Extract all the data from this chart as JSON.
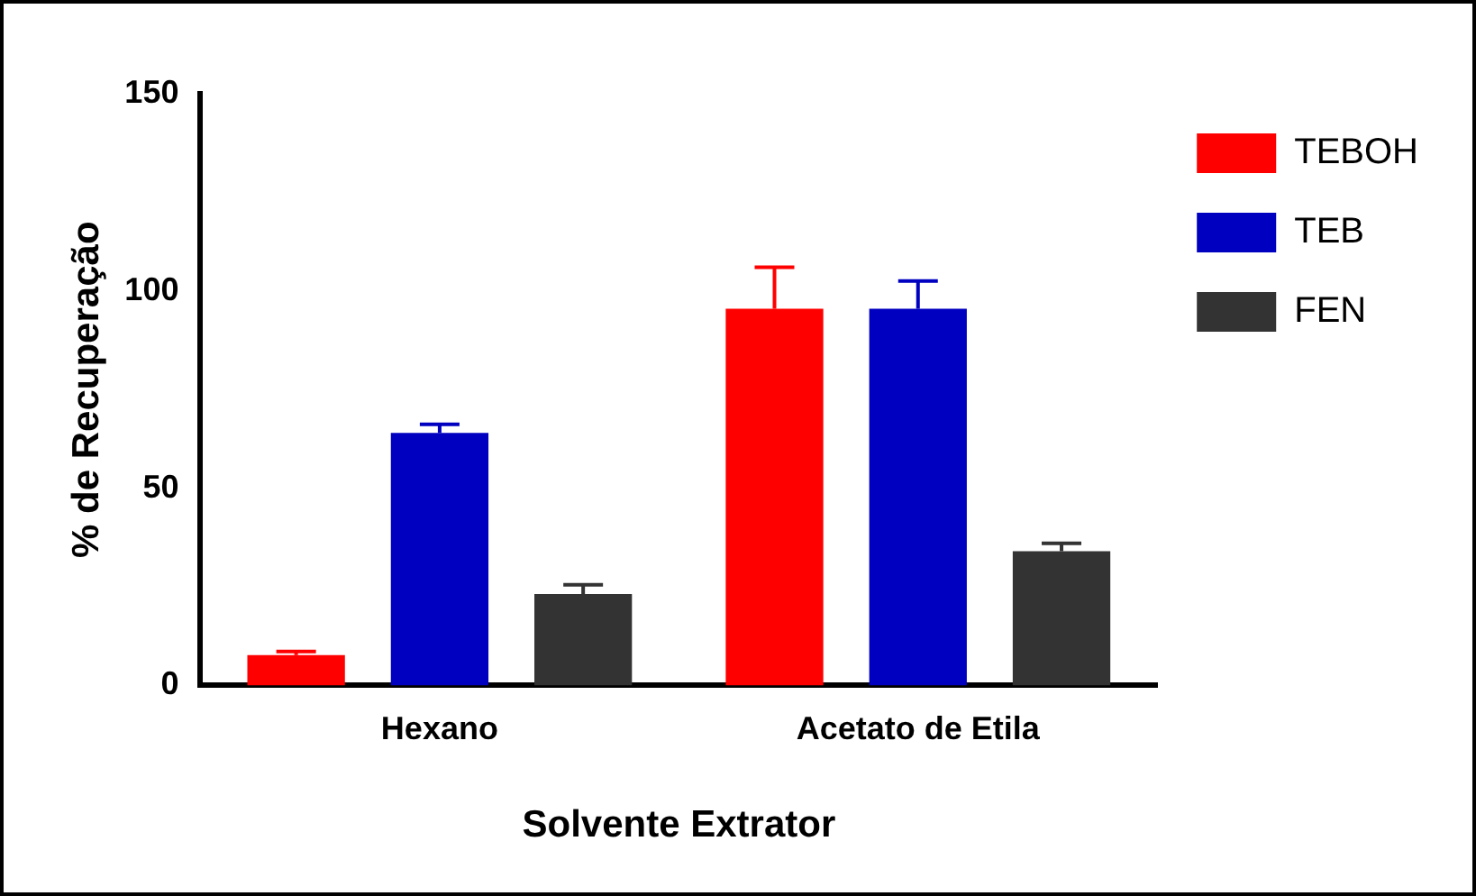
{
  "chart_data": {
    "type": "bar",
    "xlabel": "Solvente Extrator",
    "ylabel": "% de Recuperação",
    "categories": [
      "Hexano",
      "Acetato de Etila"
    ],
    "series": [
      {
        "name": "TEBOH",
        "color": "#ff0000",
        "values": [
          7.7,
          95.5
        ],
        "errors": [
          [
            7.7,
            8.6
          ],
          [
            95.5,
            106
          ]
        ]
      },
      {
        "name": "TEB",
        "color": "#0000c0",
        "values": [
          64,
          95.5
        ],
        "errors": [
          [
            64,
            66.2
          ],
          [
            95.5,
            102.5
          ]
        ]
      },
      {
        "name": "FEN",
        "color": "#333333",
        "values": [
          23.2,
          34
        ],
        "errors": [
          [
            23.2,
            25.5
          ],
          [
            34,
            36
          ]
        ]
      }
    ],
    "ylim": [
      0,
      150
    ],
    "yticks": [
      0,
      50,
      100,
      150
    ],
    "grid": false,
    "legend": "top right"
  }
}
